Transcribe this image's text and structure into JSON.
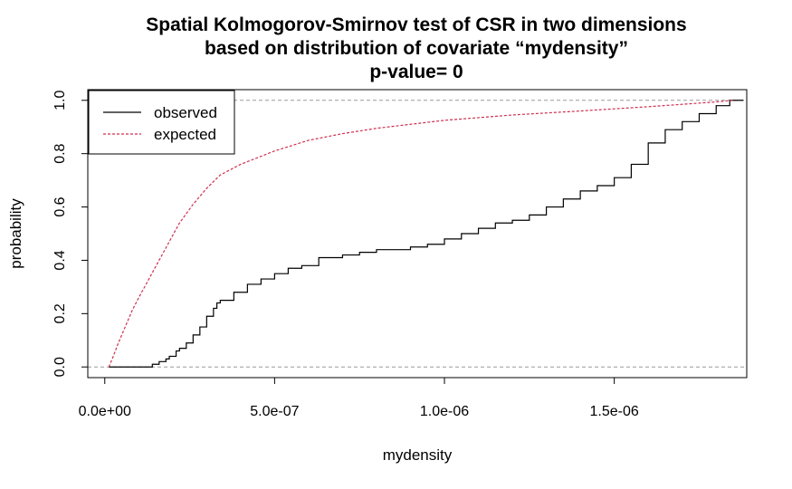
{
  "chart_data": {
    "type": "line",
    "title_lines": [
      "Spatial Kolmogorov-Smirnov test of CSR in two dimensions",
      "based on distribution of covariate “mydensity”",
      "p-value= 0"
    ],
    "xlabel": "mydensity",
    "ylabel": "probability",
    "xlim": [
      -5e-08,
      1.89e-06
    ],
    "ylim": [
      -0.04,
      1.04
    ],
    "x_ticks": [
      0,
      5e-07,
      1e-06,
      1.5e-06
    ],
    "x_tick_labels": [
      "0.0e+00",
      "5.0e-07",
      "1.0e-06",
      "1.5e-06"
    ],
    "y_ticks": [
      0,
      0.2,
      0.4,
      0.6,
      0.8,
      1
    ],
    "y_tick_labels": [
      "0.0",
      "0.2",
      "0.4",
      "0.6",
      "0.8",
      "1.0"
    ],
    "reference_lines": [
      0,
      1
    ],
    "legend_position": "top-left",
    "series": [
      {
        "name": "observed",
        "color": "#000000",
        "style": "solid",
        "step": true,
        "x": [
          1.2e-08,
          1.1e-07,
          1.4e-07,
          1.6e-07,
          1.8e-07,
          1.9e-07,
          2.1e-07,
          2.2e-07,
          2.4e-07,
          2.6e-07,
          2.8e-07,
          3e-07,
          3.2e-07,
          3.3e-07,
          3.4e-07,
          3.8e-07,
          4.2e-07,
          4.6e-07,
          5e-07,
          5.4e-07,
          5.8e-07,
          6.3e-07,
          7e-07,
          7.5e-07,
          8e-07,
          8.5e-07,
          9e-07,
          9.5e-07,
          1e-06,
          1.05e-06,
          1.1e-06,
          1.15e-06,
          1.2e-06,
          1.25e-06,
          1.3e-06,
          1.35e-06,
          1.4e-06,
          1.45e-06,
          1.5e-06,
          1.55e-06,
          1.6e-06,
          1.65e-06,
          1.7e-06,
          1.75e-06,
          1.8e-06,
          1.84e-06,
          1.88e-06
        ],
        "y": [
          0,
          0,
          0.01,
          0.02,
          0.03,
          0.04,
          0.06,
          0.07,
          0.09,
          0.12,
          0.15,
          0.19,
          0.22,
          0.24,
          0.25,
          0.28,
          0.31,
          0.33,
          0.35,
          0.37,
          0.38,
          0.41,
          0.42,
          0.43,
          0.44,
          0.44,
          0.45,
          0.46,
          0.48,
          0.5,
          0.52,
          0.54,
          0.55,
          0.57,
          0.6,
          0.63,
          0.66,
          0.68,
          0.71,
          0.76,
          0.84,
          0.89,
          0.92,
          0.95,
          0.98,
          1.0,
          1.0
        ]
      },
      {
        "name": "expected",
        "color": "#cd2f4f",
        "style": "dashed",
        "step": false,
        "x": [
          1.2e-08,
          2.5e-08,
          4e-08,
          6e-08,
          8e-08,
          1e-07,
          1.3e-07,
          1.6e-07,
          1.9e-07,
          2.2e-07,
          2.6e-07,
          3e-07,
          3.4e-07,
          4e-07,
          5e-07,
          6e-07,
          7e-07,
          8e-07,
          9e-07,
          1e-06,
          1.2e-06,
          1.4e-06,
          1.5e-06,
          1.6e-06,
          1.7e-06,
          1.8e-06,
          1.85e-06
        ],
        "y": [
          0,
          0.04,
          0.09,
          0.15,
          0.21,
          0.26,
          0.33,
          0.4,
          0.47,
          0.54,
          0.61,
          0.67,
          0.72,
          0.76,
          0.81,
          0.85,
          0.875,
          0.895,
          0.91,
          0.925,
          0.945,
          0.96,
          0.968,
          0.976,
          0.985,
          0.994,
          1.0
        ]
      }
    ]
  }
}
